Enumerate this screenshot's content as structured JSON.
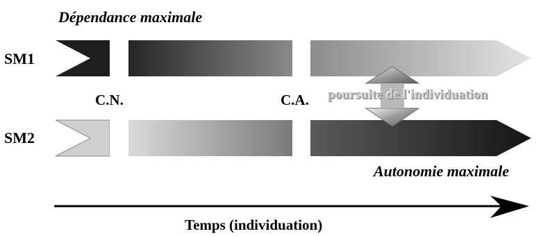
{
  "top_label": "Dépendance maximale",
  "bottom_label": "Autonomie maximale",
  "rows": [
    {
      "label": "SM1"
    },
    {
      "label": "SM2"
    }
  ],
  "markers": {
    "first": "C.N.",
    "second": "C.A."
  },
  "transition_label": "poursuite de l'individuation",
  "time_axis_label": "Temps (individuation)",
  "colors": {
    "dark": "#1a1a1a",
    "light": "#d8d8d8",
    "separator": "#ffffff",
    "text": "#000000"
  }
}
